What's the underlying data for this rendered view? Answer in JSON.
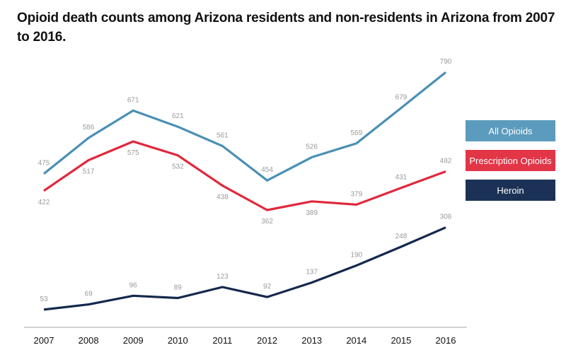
{
  "title": "Opioid death counts among Arizona residents and non-residents in Arizona from 2007 to 2016.",
  "chart_data": {
    "type": "line",
    "title": "Opioid death counts among Arizona residents and non-residents in Arizona from 2007 to 2016.",
    "xlabel": "",
    "ylabel": "",
    "x": [
      "2007",
      "2008",
      "2009",
      "2010",
      "2011",
      "2012",
      "2013",
      "2014",
      "2015",
      "2016"
    ],
    "ylim": [
      0,
      800
    ],
    "grid": false,
    "legend_placement": "right",
    "series": [
      {
        "name": "All Opioids",
        "color": "#4a90b5",
        "values": [
          475,
          586,
          671,
          621,
          561,
          454,
          526,
          569,
          679,
          790
        ],
        "label_pos": [
          "above",
          "above",
          "above",
          "above",
          "above",
          "above",
          "above",
          "above",
          "above",
          "above"
        ]
      },
      {
        "name": "Prescription Opioids",
        "color": "#e0283c",
        "values": [
          422,
          517,
          575,
          532,
          438,
          362,
          389,
          379,
          431,
          482
        ],
        "label_pos": [
          "below",
          "below",
          "below",
          "below",
          "below",
          "below",
          "below",
          "above",
          "above",
          "above"
        ]
      },
      {
        "name": "Heroin",
        "color": "#13284c",
        "values": [
          53,
          69,
          96,
          89,
          123,
          92,
          137,
          190,
          248,
          308
        ],
        "label_pos": [
          "above",
          "above",
          "above",
          "above",
          "above",
          "above",
          "above",
          "above",
          "above",
          "above"
        ]
      }
    ]
  },
  "legend": [
    {
      "label": "All Opioids",
      "color": "#5b9bbd"
    },
    {
      "label": "Prescription Opioids",
      "color": "#e23546"
    },
    {
      "label": "Heroin",
      "color": "#1b3256"
    }
  ]
}
